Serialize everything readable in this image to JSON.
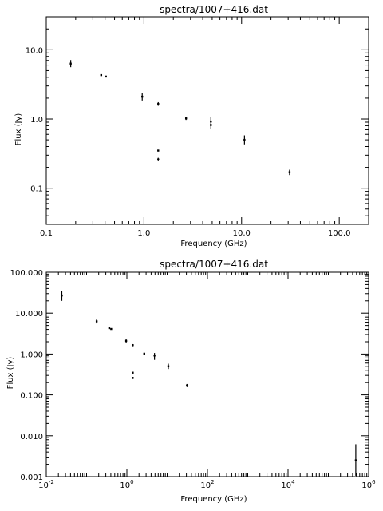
{
  "chart_data": [
    {
      "type": "scatter",
      "title": "spectra/1007+416.dat",
      "xlabel": "Frequency (GHz)",
      "ylabel": "Flux (Jy)",
      "xscale": "log",
      "yscale": "log",
      "xlim": [
        0.1,
        200
      ],
      "ylim": [
        0.03,
        30
      ],
      "xticks": [
        0.1,
        1,
        10,
        100
      ],
      "xtick_labels": [
        "0.1",
        "1.0",
        "10.0",
        "100.0"
      ],
      "yticks": [
        0.1,
        1,
        10
      ],
      "ytick_labels": [
        "0.1",
        "1.0",
        "10.0"
      ],
      "series": [
        {
          "points": [
            {
              "x": 0.178,
              "y": 6.3,
              "lo": 5.6,
              "hi": 7.1
            },
            {
              "x": 0.365,
              "y": 4.3,
              "lo": 4.2,
              "hi": 4.4
            },
            {
              "x": 0.408,
              "y": 4.1,
              "lo": 4.0,
              "hi": 4.2
            },
            {
              "x": 0.96,
              "y": 2.1,
              "lo": 1.85,
              "hi": 2.35
            },
            {
              "x": 1.4,
              "y": 1.65,
              "lo": 1.55,
              "hi": 1.75
            },
            {
              "x": 1.4,
              "y": 0.35,
              "lo": 0.34,
              "hi": 0.36
            },
            {
              "x": 1.4,
              "y": 0.26,
              "lo": 0.245,
              "hi": 0.275
            },
            {
              "x": 2.7,
              "y": 1.02,
              "lo": 0.97,
              "hi": 1.07
            },
            {
              "x": 4.85,
              "y": 0.92,
              "lo": 0.72,
              "hi": 1.06
            },
            {
              "x": 4.85,
              "y": 0.82,
              "lo": 0.8,
              "hi": 0.84
            },
            {
              "x": 10.7,
              "y": 0.5,
              "lo": 0.43,
              "hi": 0.58
            },
            {
              "x": 31,
              "y": 0.17,
              "lo": 0.155,
              "hi": 0.185
            }
          ]
        }
      ]
    },
    {
      "type": "scatter",
      "title": "spectra/1007+416.dat",
      "xlabel": "Frequency (GHz)",
      "ylabel": "Flux (Jy)",
      "xscale": "log",
      "yscale": "log",
      "xlim": [
        0.01,
        1000000
      ],
      "ylim": [
        0.001,
        100
      ],
      "xticks": [
        0.01,
        1,
        100,
        10000,
        1000000
      ],
      "xtick_labels": [
        [
          "10",
          "-2"
        ],
        [
          "10",
          "0"
        ],
        [
          "10",
          "2"
        ],
        [
          "10",
          "4"
        ],
        [
          "10",
          "6"
        ]
      ],
      "yticks": [
        0.001,
        0.01,
        0.1,
        1,
        10,
        100
      ],
      "ytick_labels": [
        "0.001",
        "0.010",
        "0.100",
        "1.000",
        "10.000",
        "100.000"
      ],
      "series": [
        {
          "points": [
            {
              "x": 0.0243,
              "y": 27,
              "lo": 20,
              "hi": 34
            },
            {
              "x": 0.178,
              "y": 6.3,
              "lo": 5.6,
              "hi": 7.1
            },
            {
              "x": 0.365,
              "y": 4.3,
              "lo": 4.2,
              "hi": 4.4
            },
            {
              "x": 0.408,
              "y": 4.1,
              "lo": 4.0,
              "hi": 4.2
            },
            {
              "x": 0.96,
              "y": 2.1,
              "lo": 1.85,
              "hi": 2.35
            },
            {
              "x": 1.4,
              "y": 1.65,
              "lo": 1.55,
              "hi": 1.75
            },
            {
              "x": 1.4,
              "y": 0.35,
              "lo": 0.34,
              "hi": 0.36
            },
            {
              "x": 1.4,
              "y": 0.26,
              "lo": 0.245,
              "hi": 0.275
            },
            {
              "x": 2.7,
              "y": 1.02,
              "lo": 0.97,
              "hi": 1.07
            },
            {
              "x": 4.85,
              "y": 0.92,
              "lo": 0.72,
              "hi": 1.06
            },
            {
              "x": 10.7,
              "y": 0.5,
              "lo": 0.43,
              "hi": 0.58
            },
            {
              "x": 31,
              "y": 0.17,
              "lo": 0.155,
              "hi": 0.185
            },
            {
              "x": 480000,
              "y": 0.0025,
              "lo": 0.00105,
              "hi": 0.0062
            }
          ]
        }
      ]
    }
  ]
}
